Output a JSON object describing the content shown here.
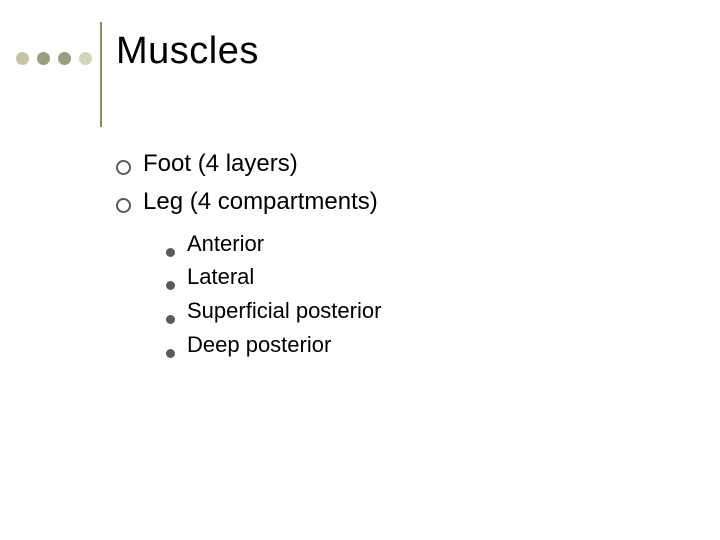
{
  "decor": {
    "dots": [
      {
        "color": "#c6c6a6"
      },
      {
        "color": "#9c9c7e"
      },
      {
        "color": "#9c9c7e"
      },
      {
        "color": "#d4d4b8"
      }
    ],
    "vline_color": "#8a8a6a"
  },
  "title": "Muscles",
  "bullets": [
    {
      "text": "Foot (4 layers)"
    },
    {
      "text": "Leg (4 compartments)"
    }
  ],
  "subbullets": [
    {
      "text": "Anterior"
    },
    {
      "text": "Lateral"
    },
    {
      "text": "Superficial posterior"
    },
    {
      "text": "Deep posterior"
    }
  ],
  "style": {
    "title_fontsize": 38,
    "l1_fontsize": 24,
    "l2_fontsize": 22,
    "ring_border_color": "#5a5a5a",
    "disc_color": "#5a5a5a",
    "background": "#ffffff",
    "text_color": "#000000"
  }
}
